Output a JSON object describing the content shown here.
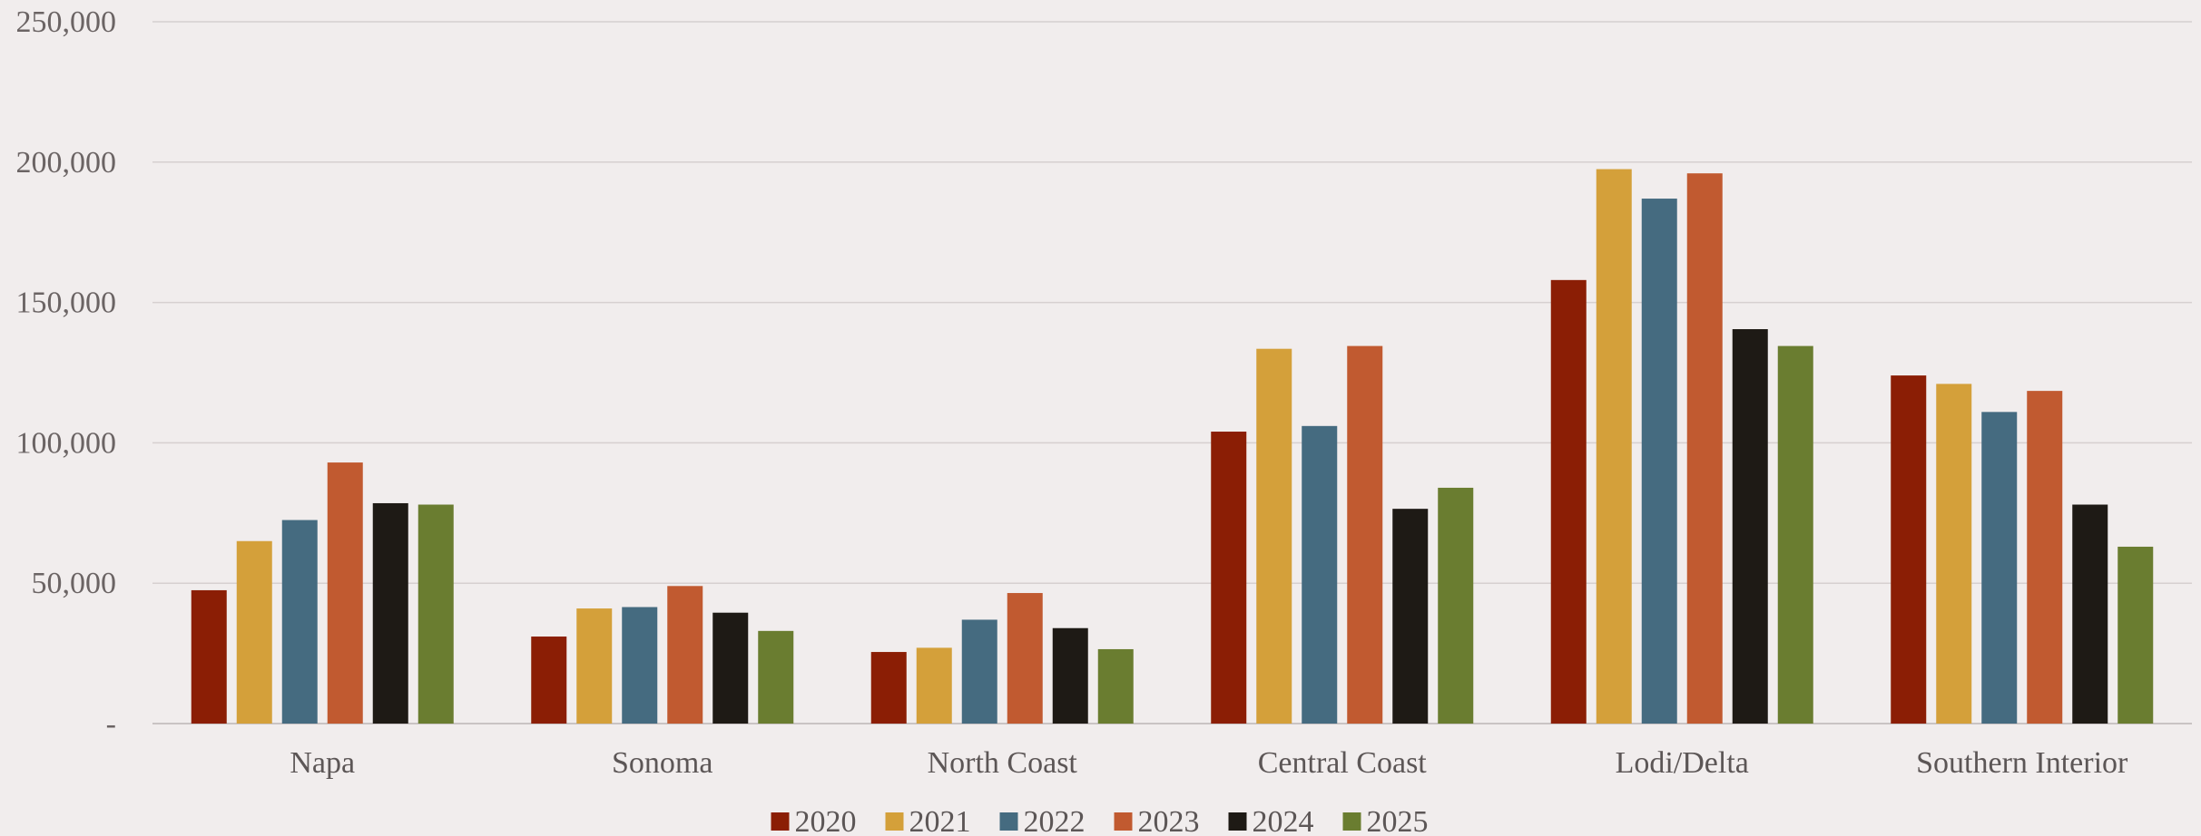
{
  "chart_data": {
    "type": "bar",
    "title": "",
    "xlabel": "",
    "ylabel": "",
    "categories": [
      "Napa",
      "Sonoma",
      "North Coast",
      "Central Coast",
      "Lodi/Delta",
      "Southern Interior"
    ],
    "series": [
      {
        "name": "2020",
        "color": "#8b1e05",
        "values": [
          47500,
          31000,
          25500,
          104000,
          158000,
          124000
        ]
      },
      {
        "name": "2021",
        "color": "#d4a03a",
        "values": [
          65000,
          41000,
          27000,
          133500,
          197500,
          121000
        ]
      },
      {
        "name": "2022",
        "color": "#456b80",
        "values": [
          72500,
          41500,
          37000,
          106000,
          187000,
          111000
        ]
      },
      {
        "name": "2023",
        "color": "#c15a30",
        "values": [
          93000,
          49000,
          46500,
          134500,
          196000,
          118500
        ]
      },
      {
        "name": "2024",
        "color": "#1e1a15",
        "values": [
          78500,
          39500,
          34000,
          76500,
          140500,
          78000
        ]
      },
      {
        "name": "2025",
        "color": "#6a7d30",
        "values": [
          78000,
          33000,
          26500,
          84000,
          134500,
          63000
        ]
      }
    ],
    "ylim": [
      0,
      250000
    ],
    "yticks": [
      0,
      50000,
      100000,
      150000,
      200000,
      250000
    ],
    "ytick_labels": [
      "-",
      "50,000",
      "100,000",
      "150,000",
      "200,000",
      "250,000"
    ],
    "grid": true,
    "legend_position": "bottom"
  }
}
